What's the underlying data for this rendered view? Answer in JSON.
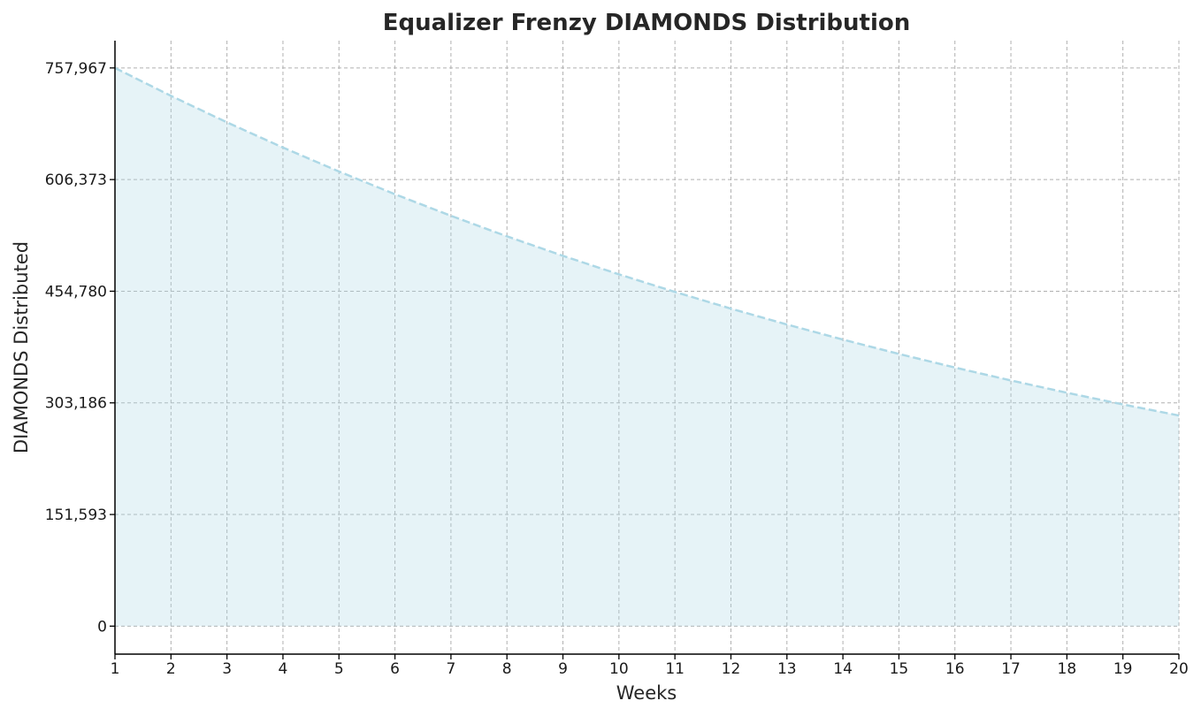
{
  "chart_data": {
    "type": "area",
    "title": "Equalizer Frenzy DIAMONDS Distribution",
    "xlabel": "Weeks",
    "ylabel": "DIAMONDS Distributed",
    "x": [
      1,
      2,
      3,
      4,
      5,
      6,
      7,
      8,
      9,
      10,
      11,
      12,
      13,
      14,
      15,
      16,
      17,
      18,
      19,
      20
    ],
    "series": [
      {
        "values": [
          757967,
          720069,
          684065,
          649862,
          617369,
          586500,
          557175,
          529317,
          502851,
          477708,
          453823,
          431132,
          409575,
          389096,
          369641,
          351159,
          333601,
          316921,
          301075,
          286022
        ]
      }
    ],
    "xlim": [
      1,
      20
    ],
    "ylim": [
      -38000,
      795000
    ],
    "x_ticks": [
      1,
      2,
      3,
      4,
      5,
      6,
      7,
      8,
      9,
      10,
      11,
      12,
      13,
      14,
      15,
      16,
      17,
      18,
      19,
      20
    ],
    "x_tick_labels": [
      "1",
      "2",
      "3",
      "4",
      "5",
      "6",
      "7",
      "8",
      "9",
      "10",
      "11",
      "12",
      "13",
      "14",
      "15",
      "16",
      "17",
      "18",
      "19",
      "20"
    ],
    "y_ticks": [
      0,
      151593,
      303186,
      454780,
      606373,
      757967
    ],
    "y_tick_labels": [
      "0",
      "151,593",
      "303,186",
      "454,780",
      "606,373",
      "757,967"
    ],
    "grid": true,
    "line_style": "dashed",
    "colors": {
      "line": "#add8e6",
      "fill": "#add8e6",
      "fill_opacity": 0.3,
      "grid": "#b0b0b0",
      "text": "#262626"
    }
  }
}
